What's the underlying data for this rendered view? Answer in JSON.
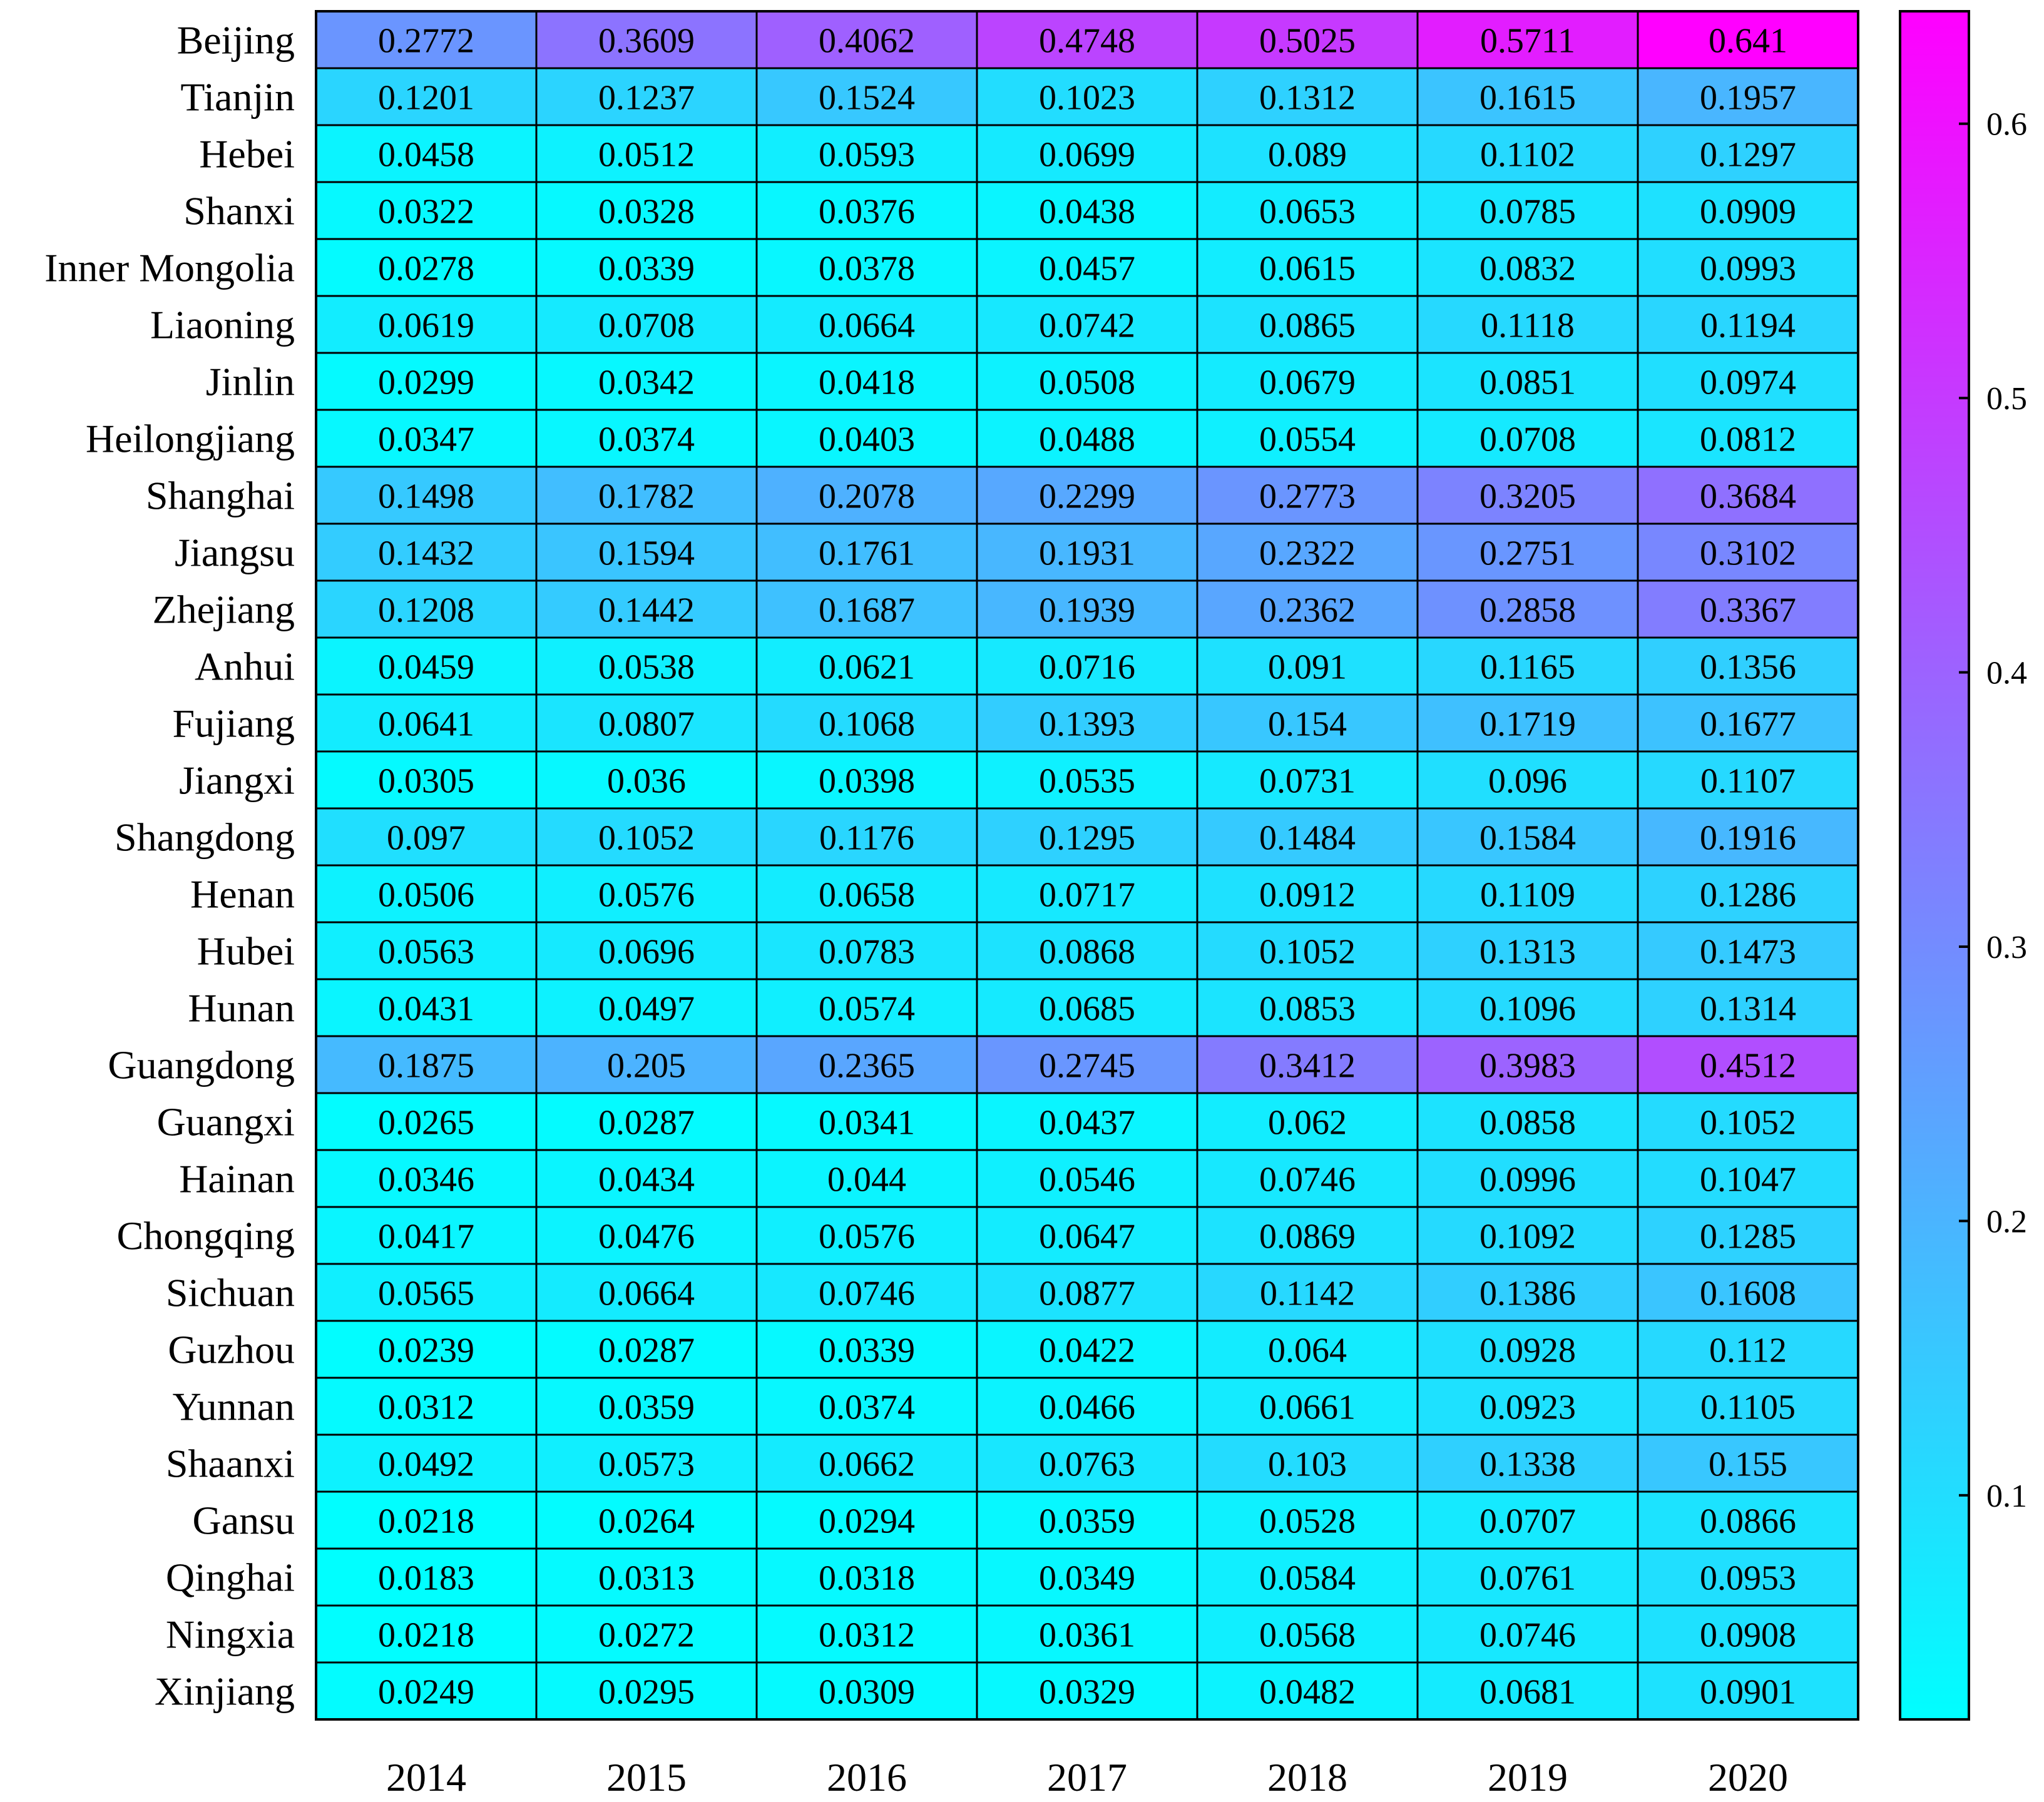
{
  "chart_data": {
    "type": "heatmap",
    "title": "",
    "xlabel": "",
    "ylabel": "",
    "columns": [
      "2014",
      "2015",
      "2016",
      "2017",
      "2018",
      "2019",
      "2020"
    ],
    "rows": [
      "Beijing",
      "Tianjin",
      "Hebei",
      "Shanxi",
      "Inner Mongolia",
      "Liaoning",
      "Jinlin",
      "Heilongjiang",
      "Shanghai",
      "Jiangsu",
      "Zhejiang",
      "Anhui",
      "Fujiang",
      "Jiangxi",
      "Shangdong",
      "Henan",
      "Hubei",
      "Hunan",
      "Guangdong",
      "Guangxi",
      "Hainan",
      "Chongqing",
      "Sichuan",
      "Guzhou",
      "Yunnan",
      "Shaanxi",
      "Gansu",
      "Qinghai",
      "Ningxia",
      "Xinjiang"
    ],
    "values": [
      [
        "0.2772",
        "0.3609",
        "0.4062",
        "0.4748",
        "0.5025",
        "0.5711",
        "0.641"
      ],
      [
        "0.1201",
        "0.1237",
        "0.1524",
        "0.1023",
        "0.1312",
        "0.1615",
        "0.1957"
      ],
      [
        "0.0458",
        "0.0512",
        "0.0593",
        "0.0699",
        "0.089",
        "0.1102",
        "0.1297"
      ],
      [
        "0.0322",
        "0.0328",
        "0.0376",
        "0.0438",
        "0.0653",
        "0.0785",
        "0.0909"
      ],
      [
        "0.0278",
        "0.0339",
        "0.0378",
        "0.0457",
        "0.0615",
        "0.0832",
        "0.0993"
      ],
      [
        "0.0619",
        "0.0708",
        "0.0664",
        "0.0742",
        "0.0865",
        "0.1118",
        "0.1194"
      ],
      [
        "0.0299",
        "0.0342",
        "0.0418",
        "0.0508",
        "0.0679",
        "0.0851",
        "0.0974"
      ],
      [
        "0.0347",
        "0.0374",
        "0.0403",
        "0.0488",
        "0.0554",
        "0.0708",
        "0.0812"
      ],
      [
        "0.1498",
        "0.1782",
        "0.2078",
        "0.2299",
        "0.2773",
        "0.3205",
        "0.3684"
      ],
      [
        "0.1432",
        "0.1594",
        "0.1761",
        "0.1931",
        "0.2322",
        "0.2751",
        "0.3102"
      ],
      [
        "0.1208",
        "0.1442",
        "0.1687",
        "0.1939",
        "0.2362",
        "0.2858",
        "0.3367"
      ],
      [
        "0.0459",
        "0.0538",
        "0.0621",
        "0.0716",
        "0.091",
        "0.1165",
        "0.1356"
      ],
      [
        "0.0641",
        "0.0807",
        "0.1068",
        "0.1393",
        "0.154",
        "0.1719",
        "0.1677"
      ],
      [
        "0.0305",
        "0.036",
        "0.0398",
        "0.0535",
        "0.0731",
        "0.096",
        "0.1107"
      ],
      [
        "0.097",
        "0.1052",
        "0.1176",
        "0.1295",
        "0.1484",
        "0.1584",
        "0.1916"
      ],
      [
        "0.0506",
        "0.0576",
        "0.0658",
        "0.0717",
        "0.0912",
        "0.1109",
        "0.1286"
      ],
      [
        "0.0563",
        "0.0696",
        "0.0783",
        "0.0868",
        "0.1052",
        "0.1313",
        "0.1473"
      ],
      [
        "0.0431",
        "0.0497",
        "0.0574",
        "0.0685",
        "0.0853",
        "0.1096",
        "0.1314"
      ],
      [
        "0.1875",
        "0.205",
        "0.2365",
        "0.2745",
        "0.3412",
        "0.3983",
        "0.4512"
      ],
      [
        "0.0265",
        "0.0287",
        "0.0341",
        "0.0437",
        "0.062",
        "0.0858",
        "0.1052"
      ],
      [
        "0.0346",
        "0.0434",
        "0.044",
        "0.0546",
        "0.0746",
        "0.0996",
        "0.1047"
      ],
      [
        "0.0417",
        "0.0476",
        "0.0576",
        "0.0647",
        "0.0869",
        "0.1092",
        "0.1285"
      ],
      [
        "0.0565",
        "0.0664",
        "0.0746",
        "0.0877",
        "0.1142",
        "0.1386",
        "0.1608"
      ],
      [
        "0.0239",
        "0.0287",
        "0.0339",
        "0.0422",
        "0.064",
        "0.0928",
        "0.112"
      ],
      [
        "0.0312",
        "0.0359",
        "0.0374",
        "0.0466",
        "0.0661",
        "0.0923",
        "0.1105"
      ],
      [
        "0.0492",
        "0.0573",
        "0.0662",
        "0.0763",
        "0.103",
        "0.1338",
        "0.155"
      ],
      [
        "0.0218",
        "0.0264",
        "0.0294",
        "0.0359",
        "0.0528",
        "0.0707",
        "0.0866"
      ],
      [
        "0.0183",
        "0.0313",
        "0.0318",
        "0.0349",
        "0.0584",
        "0.0761",
        "0.0953"
      ],
      [
        "0.0218",
        "0.0272",
        "0.0312",
        "0.0361",
        "0.0568",
        "0.0746",
        "0.0908"
      ],
      [
        "0.0249",
        "0.0295",
        "0.0309",
        "0.0329",
        "0.0482",
        "0.0681",
        "0.0901"
      ]
    ],
    "colormap": {
      "low": "#00ffff",
      "high": "#ff00ff"
    },
    "colorbar": {
      "range": [
        0.0183,
        0.641
      ],
      "ticks": [
        "0.1",
        "0.2",
        "0.3",
        "0.4",
        "0.5",
        "0.6"
      ]
    },
    "legend": "right",
    "grid": false
  }
}
